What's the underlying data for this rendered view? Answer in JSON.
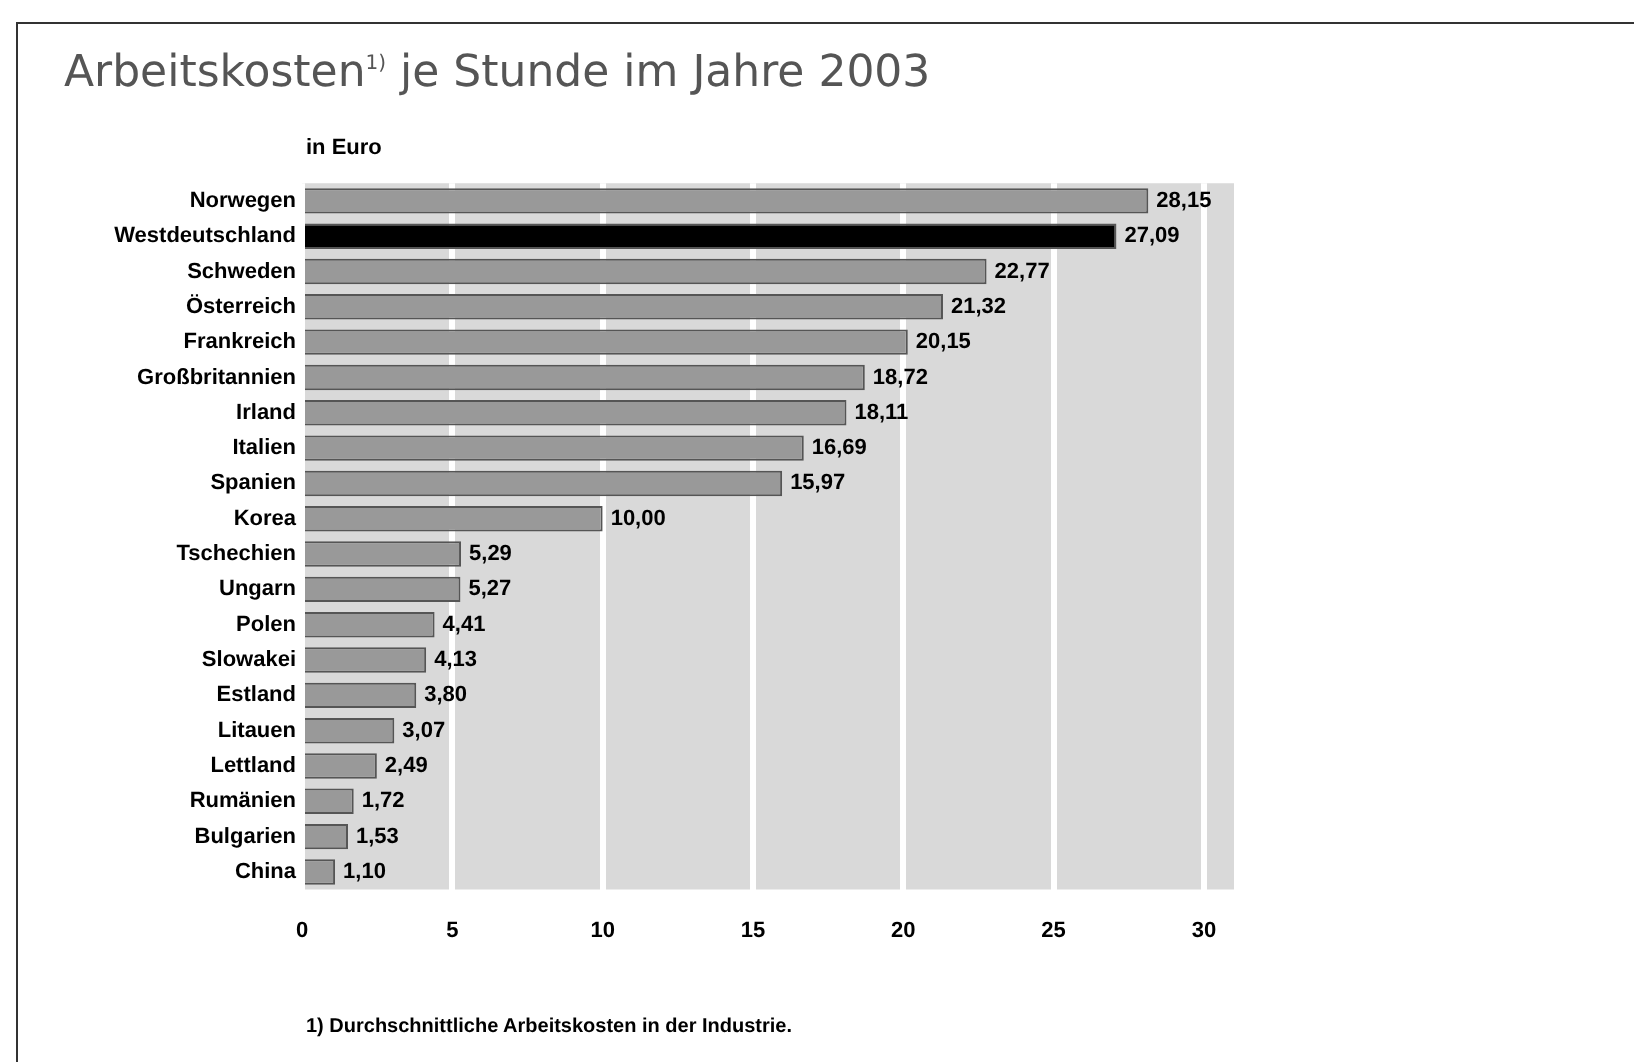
{
  "chart_data": {
    "type": "bar",
    "orientation": "horizontal",
    "title": "Arbeitskosten$^{1)}$ je Stunde im Jahre 2003",
    "xlabel": "in Euro",
    "categories": [
      "Norwegen",
      "Westdeutschland",
      "Schweden",
      "Österreich",
      "Frankreich",
      "Großbritannien",
      "Irland",
      "Italien",
      "Spanien",
      "Korea",
      "Tschechien",
      "Ungarn",
      "Polen",
      "Slowakei",
      "Estland",
      "Litauen",
      "Lettland",
      "Rumänien",
      "Bulgarien",
      "China"
    ],
    "values": [
      28.15,
      27.09,
      22.77,
      21.32,
      20.15,
      18.72,
      18.11,
      16.69,
      15.97,
      10.0,
      5.29,
      5.27,
      4.41,
      4.13,
      3.8,
      3.07,
      2.49,
      1.72,
      1.53,
      1.1
    ],
    "value_labels": [
      "28,15",
      "27,09",
      "22,77",
      "21,32",
      "20,15",
      "18,72",
      "18,11",
      "16,69",
      "15,97",
      "10,00",
      "5,29",
      "5,27",
      "4,41",
      "4,13",
      "3,80",
      "3,07",
      "2,49",
      "1,72",
      "1,53",
      "1,10"
    ],
    "colors": [
      "#999999",
      "#000000",
      "#999999",
      "#999999",
      "#999999",
      "#999999",
      "#999999",
      "#999999",
      "#999999",
      "#999999",
      "#999999",
      "#999999",
      "#999999",
      "#999999",
      "#999999",
      "#999999",
      "#999999",
      "#999999",
      "#999999",
      "#999999"
    ],
    "xlim": [
      0,
      31
    ],
    "xticks": [
      0,
      5,
      10,
      15,
      20,
      25,
      30
    ],
    "grid": "x",
    "annotations": [
      "1) Durchschnittliche Arbeitskosten in der Industrie."
    ]
  }
}
